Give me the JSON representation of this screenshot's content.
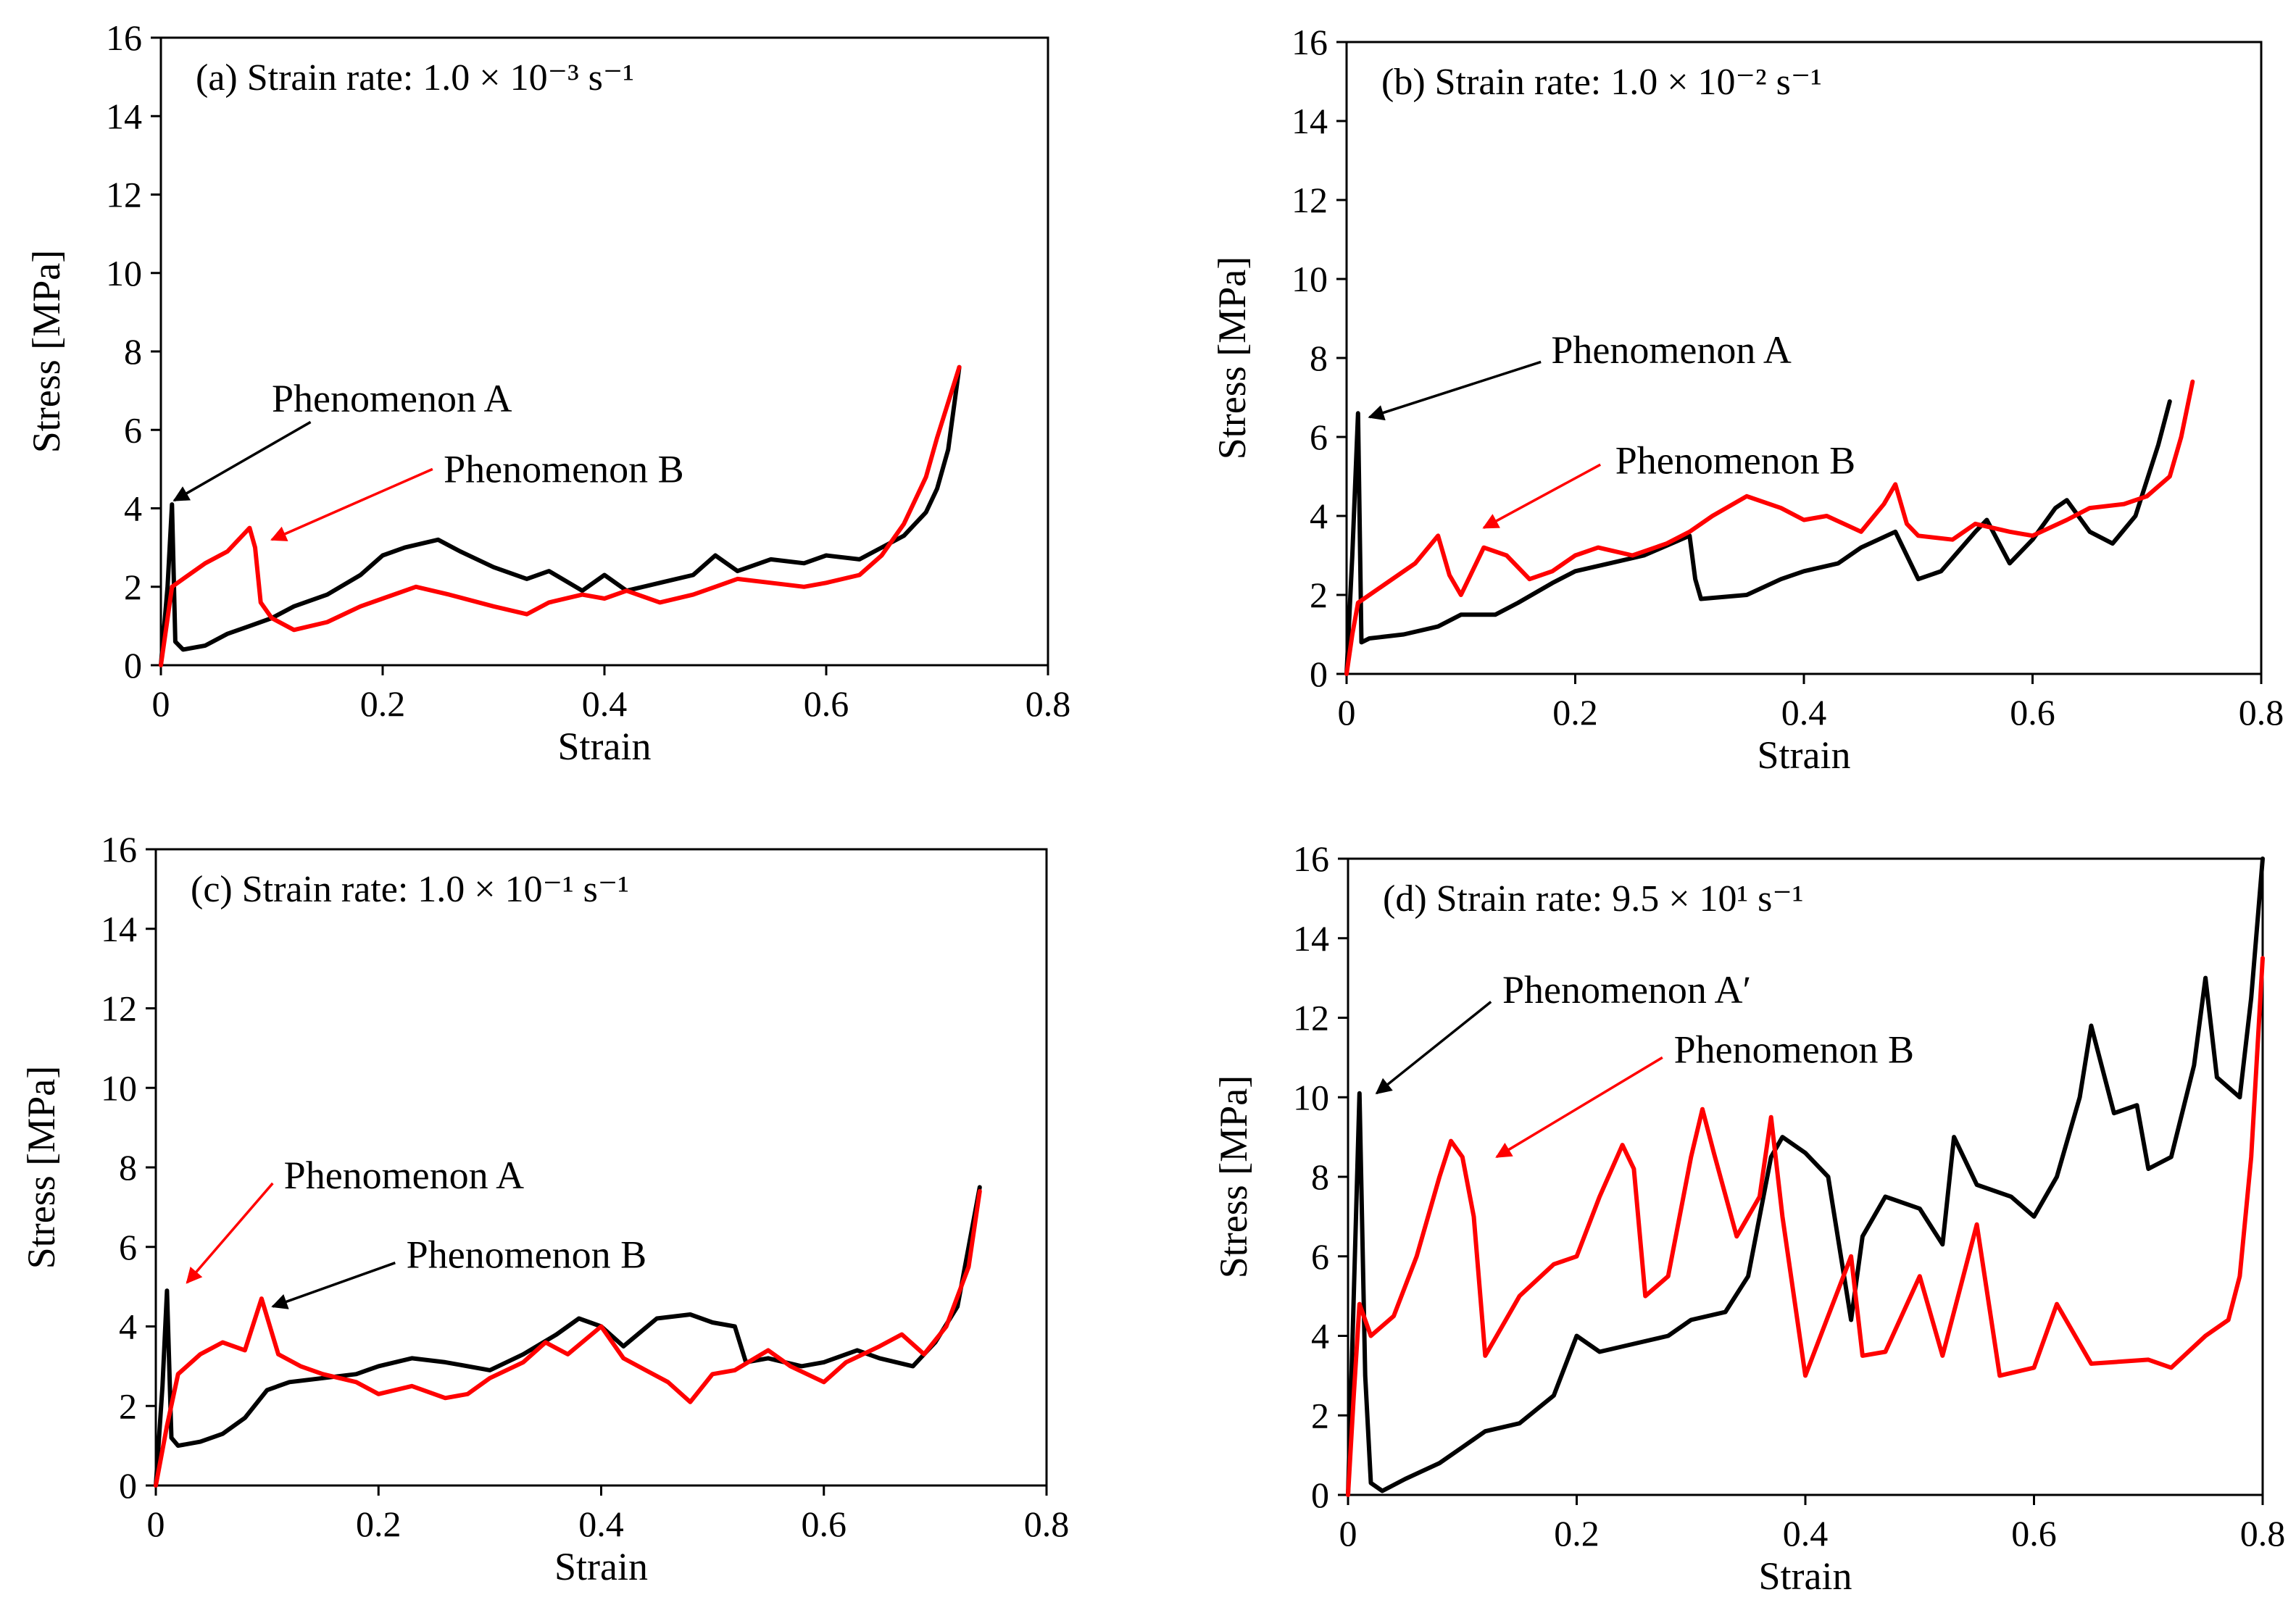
{
  "chart_data": [
    {
      "type": "line",
      "panel": "a",
      "title": "(a) Strain rate: 1.0 × 10⁻³ s⁻¹",
      "xlabel": "Strain",
      "ylabel": "Stress [MPa]",
      "xlim": [
        0,
        0.8
      ],
      "ylim": [
        0,
        16
      ],
      "xticks": [
        "0",
        "0.2",
        "0.4",
        "0.6",
        "0.8"
      ],
      "yticks": [
        "0",
        "2",
        "4",
        "6",
        "8",
        "10",
        "12",
        "14",
        "16"
      ],
      "series": [
        {
          "color": "#000000",
          "x": [
            0,
            0.006,
            0.01,
            0.013,
            0.02,
            0.04,
            0.06,
            0.08,
            0.1,
            0.12,
            0.15,
            0.18,
            0.2,
            0.22,
            0.25,
            0.27,
            0.3,
            0.33,
            0.35,
            0.38,
            0.4,
            0.42,
            0.45,
            0.48,
            0.5,
            0.52,
            0.55,
            0.58,
            0.6,
            0.63,
            0.65,
            0.67,
            0.69,
            0.7,
            0.71,
            0.72
          ],
          "y": [
            0,
            2.0,
            4.1,
            0.6,
            0.4,
            0.5,
            0.8,
            1.0,
            1.2,
            1.5,
            1.8,
            2.3,
            2.8,
            3.0,
            3.2,
            2.9,
            2.5,
            2.2,
            2.4,
            1.9,
            2.3,
            1.9,
            2.1,
            2.3,
            2.8,
            2.4,
            2.7,
            2.6,
            2.8,
            2.7,
            3.0,
            3.3,
            3.9,
            4.5,
            5.5,
            7.6
          ]
        },
        {
          "color": "#ff0000",
          "x": [
            0,
            0.005,
            0.01,
            0.02,
            0.04,
            0.06,
            0.08,
            0.085,
            0.09,
            0.1,
            0.12,
            0.15,
            0.18,
            0.2,
            0.23,
            0.26,
            0.3,
            0.33,
            0.35,
            0.38,
            0.4,
            0.42,
            0.45,
            0.48,
            0.5,
            0.52,
            0.55,
            0.58,
            0.6,
            0.63,
            0.65,
            0.67,
            0.69,
            0.7,
            0.71,
            0.72
          ],
          "y": [
            0,
            1.0,
            2.0,
            2.2,
            2.6,
            2.9,
            3.5,
            3.0,
            1.6,
            1.2,
            0.9,
            1.1,
            1.5,
            1.7,
            2.0,
            1.8,
            1.5,
            1.3,
            1.6,
            1.8,
            1.7,
            1.9,
            1.6,
            1.8,
            2.0,
            2.2,
            2.1,
            2.0,
            2.1,
            2.3,
            2.8,
            3.6,
            4.8,
            5.8,
            6.7,
            7.6
          ]
        }
      ],
      "annotations": [
        {
          "text": "Phenomenon A",
          "color": "#000000",
          "label_x": 0.1,
          "label_y": 6.8,
          "from_x": 0.135,
          "from_y": 6.2,
          "to_x": 0.012,
          "to_y": 4.2
        },
        {
          "text": "Phenomenon B",
          "color": "#ff0000",
          "label_x": 0.255,
          "label_y": 5.0,
          "from_x": 0.245,
          "from_y": 5.0,
          "to_x": 0.1,
          "to_y": 3.2
        }
      ]
    },
    {
      "type": "line",
      "panel": "b",
      "title": "(b) Strain rate: 1.0 × 10⁻² s⁻¹",
      "xlabel": "Strain",
      "ylabel": "Stress [MPa]",
      "xlim": [
        0,
        0.8
      ],
      "ylim": [
        0,
        16
      ],
      "xticks": [
        "0",
        "0.2",
        "0.4",
        "0.6",
        "0.8"
      ],
      "yticks": [
        "0",
        "2",
        "4",
        "6",
        "8",
        "10",
        "12",
        "14",
        "16"
      ],
      "series": [
        {
          "color": "#000000",
          "x": [
            0,
            0.005,
            0.01,
            0.013,
            0.02,
            0.05,
            0.08,
            0.1,
            0.13,
            0.15,
            0.18,
            0.2,
            0.23,
            0.26,
            0.3,
            0.305,
            0.31,
            0.35,
            0.38,
            0.4,
            0.43,
            0.45,
            0.48,
            0.5,
            0.52,
            0.55,
            0.56,
            0.58,
            0.6,
            0.62,
            0.63,
            0.65,
            0.67,
            0.69,
            0.71,
            0.72
          ],
          "y": [
            0,
            3.0,
            6.6,
            0.8,
            0.9,
            1.0,
            1.2,
            1.5,
            1.5,
            1.8,
            2.3,
            2.6,
            2.8,
            3.0,
            3.5,
            2.4,
            1.9,
            2.0,
            2.4,
            2.6,
            2.8,
            3.2,
            3.6,
            2.4,
            2.6,
            3.6,
            3.9,
            2.8,
            3.4,
            4.2,
            4.4,
            3.6,
            3.3,
            4.0,
            5.8,
            6.9
          ]
        },
        {
          "color": "#ff0000",
          "x": [
            0,
            0.005,
            0.01,
            0.03,
            0.06,
            0.08,
            0.09,
            0.1,
            0.12,
            0.14,
            0.16,
            0.18,
            0.2,
            0.22,
            0.25,
            0.28,
            0.3,
            0.32,
            0.35,
            0.38,
            0.4,
            0.42,
            0.45,
            0.47,
            0.48,
            0.49,
            0.5,
            0.53,
            0.55,
            0.58,
            0.6,
            0.63,
            0.65,
            0.68,
            0.7,
            0.72,
            0.73,
            0.74
          ],
          "y": [
            0,
            1.0,
            1.8,
            2.2,
            2.8,
            3.5,
            2.5,
            2.0,
            3.2,
            3.0,
            2.4,
            2.6,
            3.0,
            3.2,
            3.0,
            3.3,
            3.6,
            4.0,
            4.5,
            4.2,
            3.9,
            4.0,
            3.6,
            4.3,
            4.8,
            3.8,
            3.5,
            3.4,
            3.8,
            3.6,
            3.5,
            3.9,
            4.2,
            4.3,
            4.5,
            5.0,
            6.0,
            7.4
          ]
        }
      ],
      "annotations": [
        {
          "text": "Phenomenon A",
          "color": "#000000",
          "label_x": 0.179,
          "label_y": 8.2,
          "from_x": 0.17,
          "from_y": 7.9,
          "to_x": 0.02,
          "to_y": 6.5
        },
        {
          "text": "Phenomenon B",
          "color": "#ff0000",
          "label_x": 0.235,
          "label_y": 5.4,
          "from_x": 0.222,
          "from_y": 5.3,
          "to_x": 0.12,
          "to_y": 3.7
        }
      ]
    },
    {
      "type": "line",
      "panel": "c",
      "title": "(c) Strain rate: 1.0 × 10⁻¹ s⁻¹",
      "xlabel": "Strain",
      "ylabel": "Stress [MPa]",
      "xlim": [
        0,
        0.8
      ],
      "ylim": [
        0,
        16
      ],
      "xticks": [
        "0",
        "0.2",
        "0.4",
        "0.6",
        "0.8"
      ],
      "yticks": [
        "0",
        "2",
        "4",
        "6",
        "8",
        "10",
        "12",
        "14",
        "16"
      ],
      "series": [
        {
          "color": "#000000",
          "x": [
            0,
            0.006,
            0.01,
            0.014,
            0.02,
            0.04,
            0.06,
            0.08,
            0.1,
            0.12,
            0.15,
            0.18,
            0.2,
            0.23,
            0.26,
            0.3,
            0.33,
            0.36,
            0.38,
            0.4,
            0.42,
            0.45,
            0.48,
            0.5,
            0.52,
            0.53,
            0.55,
            0.58,
            0.6,
            0.63,
            0.65,
            0.68,
            0.7,
            0.72,
            0.73,
            0.74
          ],
          "y": [
            0,
            2.5,
            4.9,
            1.2,
            1.0,
            1.1,
            1.3,
            1.7,
            2.4,
            2.6,
            2.7,
            2.8,
            3.0,
            3.2,
            3.1,
            2.9,
            3.3,
            3.8,
            4.2,
            4.0,
            3.5,
            4.2,
            4.3,
            4.1,
            4.0,
            3.1,
            3.2,
            3.0,
            3.1,
            3.4,
            3.2,
            3.0,
            3.6,
            4.5,
            6.0,
            7.5
          ]
        },
        {
          "color": "#ff0000",
          "x": [
            0,
            0.01,
            0.02,
            0.04,
            0.06,
            0.08,
            0.095,
            0.11,
            0.13,
            0.15,
            0.18,
            0.2,
            0.23,
            0.26,
            0.28,
            0.3,
            0.33,
            0.35,
            0.37,
            0.4,
            0.42,
            0.44,
            0.46,
            0.48,
            0.5,
            0.52,
            0.55,
            0.57,
            0.6,
            0.62,
            0.65,
            0.67,
            0.69,
            0.71,
            0.73,
            0.74
          ],
          "y": [
            0,
            1.5,
            2.8,
            3.3,
            3.6,
            3.4,
            4.7,
            3.3,
            3.0,
            2.8,
            2.6,
            2.3,
            2.5,
            2.2,
            2.3,
            2.7,
            3.1,
            3.6,
            3.3,
            4.0,
            3.2,
            2.9,
            2.6,
            2.1,
            2.8,
            2.9,
            3.4,
            3.0,
            2.6,
            3.1,
            3.5,
            3.8,
            3.3,
            4.0,
            5.5,
            7.4
          ]
        }
      ],
      "annotations": [
        {
          "text": "Phenomenon A",
          "color": "#ff0000",
          "label_x": 0.115,
          "label_y": 7.8,
          "from_x": 0.105,
          "from_y": 7.6,
          "to_x": 0.028,
          "to_y": 5.1
        },
        {
          "text": "Phenomenon B",
          "color": "#000000",
          "label_x": 0.225,
          "label_y": 5.8,
          "from_x": 0.215,
          "from_y": 5.6,
          "to_x": 0.105,
          "to_y": 4.5
        }
      ]
    },
    {
      "type": "line",
      "panel": "d",
      "title": "(d) Strain rate: 9.5 × 10¹ s⁻¹",
      "xlabel": "Strain",
      "ylabel": "Stress [MPa]",
      "xlim": [
        0,
        0.8
      ],
      "ylim": [
        0,
        16
      ],
      "xticks": [
        "0",
        "0.2",
        "0.4",
        "0.6",
        "0.8"
      ],
      "yticks": [
        "0",
        "2",
        "4",
        "6",
        "8",
        "10",
        "12",
        "14",
        "16"
      ],
      "series": [
        {
          "color": "#000000",
          "x": [
            0,
            0.005,
            0.01,
            0.015,
            0.02,
            0.03,
            0.05,
            0.08,
            0.1,
            0.12,
            0.15,
            0.18,
            0.2,
            0.22,
            0.25,
            0.28,
            0.3,
            0.33,
            0.35,
            0.37,
            0.38,
            0.4,
            0.42,
            0.44,
            0.45,
            0.47,
            0.5,
            0.52,
            0.53,
            0.55,
            0.58,
            0.6,
            0.62,
            0.64,
            0.65,
            0.67,
            0.69,
            0.7,
            0.72,
            0.74,
            0.75,
            0.76,
            0.78,
            0.79,
            0.8
          ],
          "y": [
            0,
            5.0,
            10.1,
            3.0,
            0.3,
            0.1,
            0.4,
            0.8,
            1.2,
            1.6,
            1.8,
            2.5,
            4.0,
            3.6,
            3.8,
            4.0,
            4.4,
            4.6,
            5.5,
            8.5,
            9.0,
            8.6,
            8.0,
            4.4,
            6.5,
            7.5,
            7.2,
            6.3,
            9.0,
            7.8,
            7.5,
            7.0,
            8.0,
            10.0,
            11.8,
            9.6,
            9.8,
            8.2,
            8.5,
            10.8,
            13.0,
            10.5,
            10.0,
            12.5,
            16.0
          ]
        },
        {
          "color": "#ff0000",
          "x": [
            0,
            0.005,
            0.01,
            0.02,
            0.04,
            0.06,
            0.08,
            0.09,
            0.1,
            0.11,
            0.12,
            0.13,
            0.15,
            0.18,
            0.2,
            0.22,
            0.24,
            0.25,
            0.26,
            0.28,
            0.3,
            0.31,
            0.32,
            0.34,
            0.36,
            0.37,
            0.38,
            0.4,
            0.42,
            0.44,
            0.45,
            0.47,
            0.5,
            0.52,
            0.55,
            0.57,
            0.6,
            0.62,
            0.65,
            0.7,
            0.72,
            0.75,
            0.77,
            0.78,
            0.79,
            0.8
          ],
          "y": [
            0,
            2.5,
            4.8,
            4.0,
            4.5,
            6.0,
            8.0,
            8.9,
            8.5,
            7.0,
            3.5,
            4.0,
            5.0,
            5.8,
            6.0,
            7.5,
            8.8,
            8.2,
            5.0,
            5.5,
            8.5,
            9.7,
            8.6,
            6.5,
            7.5,
            9.5,
            7.0,
            3.0,
            4.5,
            6.0,
            3.5,
            3.6,
            5.5,
            3.5,
            6.8,
            3.0,
            3.2,
            4.8,
            3.3,
            3.4,
            3.2,
            4.0,
            4.4,
            5.5,
            8.5,
            13.5
          ]
        }
      ],
      "annotations": [
        {
          "text": "Phenomenon A′",
          "color": "#000000",
          "label_x": 0.135,
          "label_y": 12.7,
          "from_x": 0.125,
          "from_y": 12.4,
          "to_x": 0.025,
          "to_y": 10.1
        },
        {
          "text": "Phenomenon B",
          "color": "#ff0000",
          "label_x": 0.285,
          "label_y": 11.2,
          "from_x": 0.275,
          "from_y": 11.0,
          "to_x": 0.13,
          "to_y": 8.5
        }
      ]
    }
  ]
}
